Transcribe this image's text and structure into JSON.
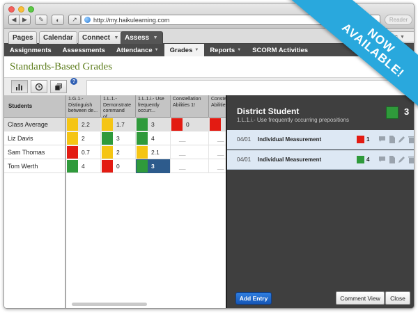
{
  "browser": {
    "url": "http://my.haikulearning.com",
    "reader_label": "Reader"
  },
  "app_tabs": [
    {
      "label": "Pages"
    },
    {
      "label": "Calendar"
    },
    {
      "label": "Connect"
    },
    {
      "label": "Assess"
    }
  ],
  "manage_label": "age Class",
  "subnav": [
    {
      "label": "Assignments"
    },
    {
      "label": "Assessments"
    },
    {
      "label": "Attendance"
    },
    {
      "label": "Grades"
    },
    {
      "label": "Reports"
    },
    {
      "label": "SCORM Activities"
    }
  ],
  "page_title": "Standards-Based Grades",
  "toolbar": {
    "help": "?"
  },
  "gradebook": {
    "students_header": "Students",
    "columns": [
      {
        "label": "1.G.1.- Distinguish between de..."
      },
      {
        "label": "1.L.1.- Demonstrate command of..."
      },
      {
        "label": "1.L.1.i.- Use frequently occurr..."
      },
      {
        "label": "Constellation Abilities 1!"
      },
      {
        "label": "Conste Abilities"
      }
    ],
    "rows": [
      {
        "name": "Class Average",
        "cells": [
          {
            "color": "#f5c514",
            "value": "2.2"
          },
          {
            "color": "#f5c514",
            "value": "1.7"
          },
          {
            "color": "#2f9a3b",
            "value": "3"
          },
          {
            "color": "#e31b12",
            "value": "0"
          },
          {
            "color": "#e31b12",
            "value": ""
          }
        ]
      },
      {
        "name": "Liz Davis",
        "cells": [
          {
            "color": "#f5c514",
            "value": "2"
          },
          {
            "color": "#2f9a3b",
            "value": "3"
          },
          {
            "color": "#2f9a3b",
            "value": "4"
          },
          {
            "color": "",
            "value": "__"
          },
          {
            "color": "",
            "value": "__"
          }
        ]
      },
      {
        "name": "Sam Thomas",
        "cells": [
          {
            "color": "#e31b12",
            "value": "0.7"
          },
          {
            "color": "#f5c514",
            "value": "2"
          },
          {
            "color": "#f5c514",
            "value": "2.1"
          },
          {
            "color": "",
            "value": "__"
          },
          {
            "color": "",
            "value": "__"
          }
        ]
      },
      {
        "name": "Tom Werth",
        "cells": [
          {
            "color": "#2f9a3b",
            "value": "4"
          },
          {
            "color": "#e31b12",
            "value": "0"
          },
          {
            "color": "#2f9a3b",
            "value": "3"
          },
          {
            "color": "",
            "value": "__"
          },
          {
            "color": "",
            "value": "__"
          }
        ]
      }
    ]
  },
  "panel": {
    "student_name": "District Student",
    "standard": "1.L.1.i.- Use frequently occurring prepositions",
    "badge_color": "#2f9a3b",
    "badge_value": "3",
    "entries": [
      {
        "date": "04/01",
        "title": "Individual Measurement",
        "color": "#e31b12",
        "score": "1"
      },
      {
        "date": "04/01",
        "title": "Individual Measurement",
        "color": "#2f9a3b",
        "score": "4"
      }
    ],
    "add_entry": "Add Entry",
    "comment_view": "Comment View",
    "close": "Close"
  },
  "banner": {
    "line1": "NOW",
    "line2": "AVAILABLE!"
  }
}
